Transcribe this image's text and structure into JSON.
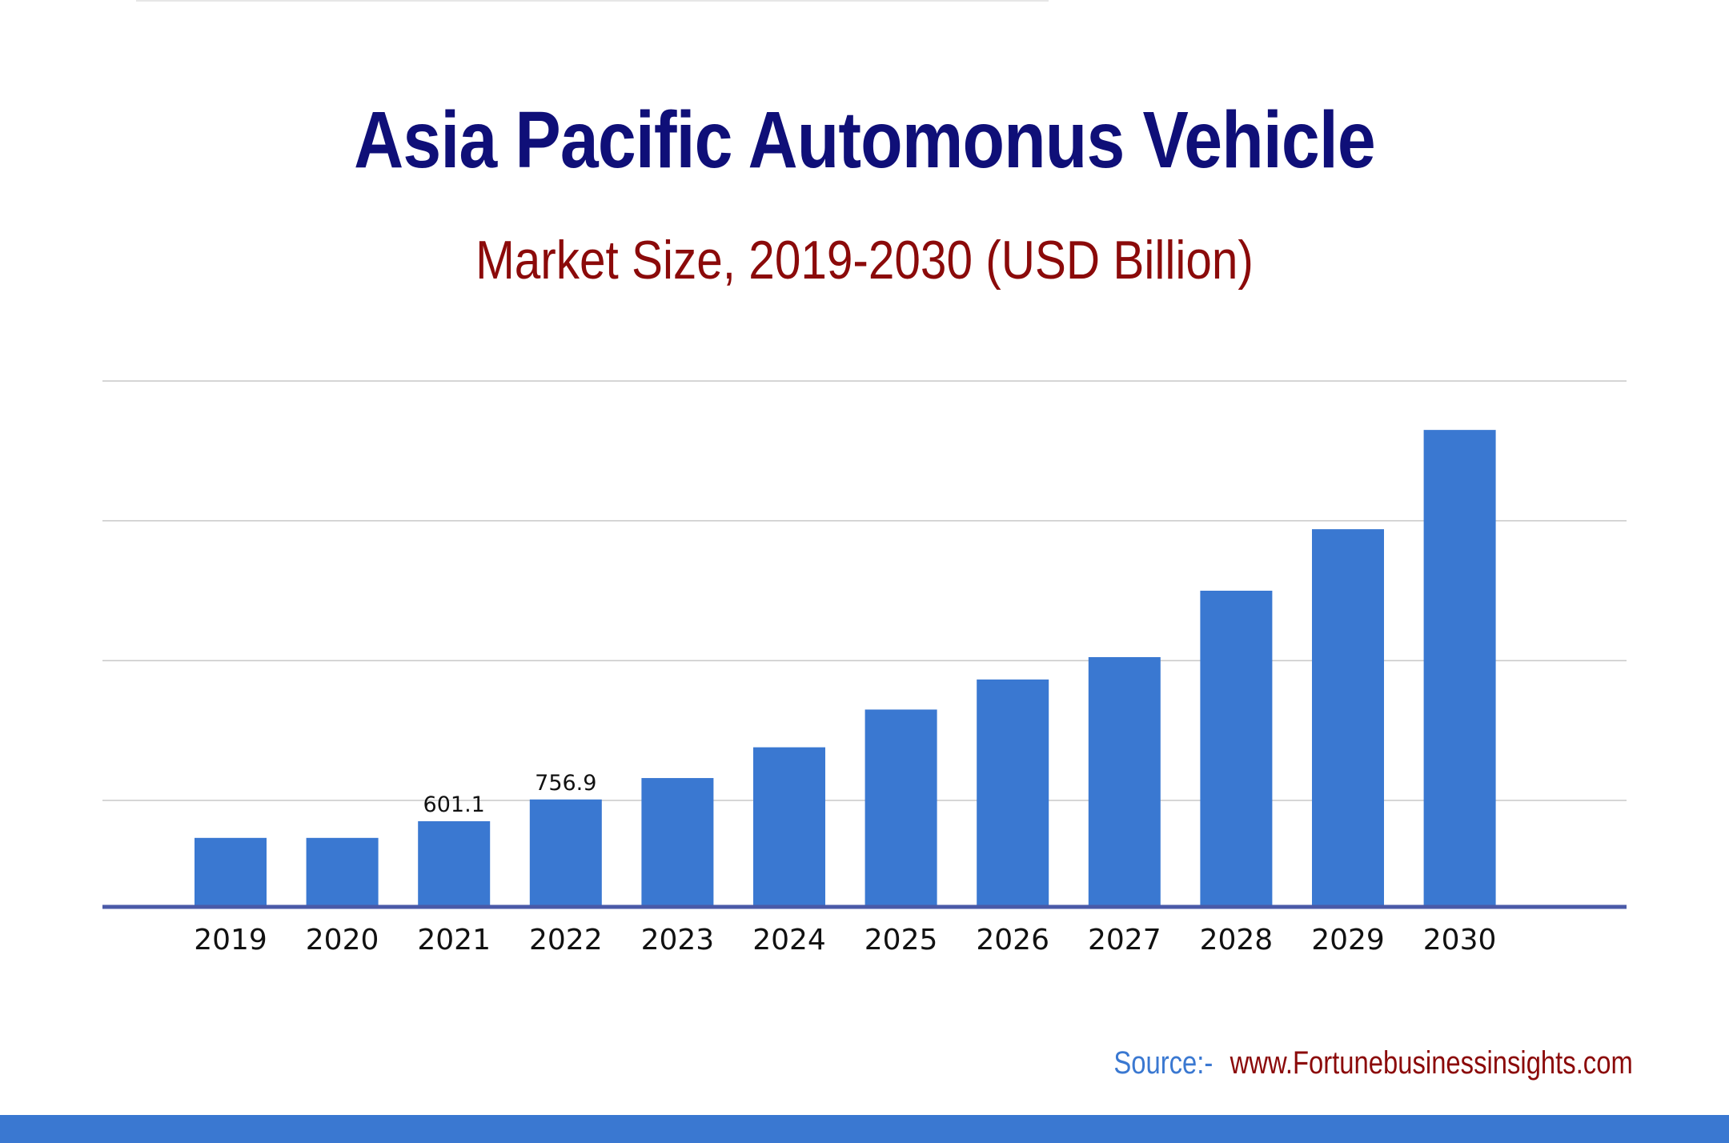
{
  "header": {
    "title": "Asia Pacific Automonus Vehicle",
    "subtitle": "Market Size, 2019-2030 (USD Billion)"
  },
  "source": {
    "label": "Source:-",
    "url_text": "www.Fortunebusinessinsights.com"
  },
  "colors": {
    "bar": "#3a78d1",
    "title": "#0f0f78",
    "subtitle": "#8b0a0a",
    "axis": "#4a5aa8",
    "grid": "#c8c8c8",
    "footer_bar": "#3a78d1"
  },
  "chart_data": {
    "type": "bar",
    "categories": [
      "2019",
      "2020",
      "2021",
      "2022",
      "2023",
      "2024",
      "2025",
      "2026",
      "2027",
      "2028",
      "2029",
      "2030"
    ],
    "values": [
      482,
      482,
      601.1,
      756.9,
      910,
      1130,
      1400,
      1615,
      1775,
      2250,
      2690,
      3400
    ],
    "data_labels": [
      {
        "category": "2021",
        "text": "601.1"
      },
      {
        "category": "2022",
        "text": "756.9"
      }
    ],
    "title": "Asia Pacific Automonus Vehicle",
    "subtitle": "Market Size, 2019-2030 (USD Billion)",
    "xlabel": "",
    "ylabel": "",
    "ylim": [
      0,
      3750
    ],
    "gridlines": [
      750,
      1750,
      2750,
      3750
    ],
    "grid": true,
    "legend": "none",
    "y_tick_labels_shown": false
  }
}
